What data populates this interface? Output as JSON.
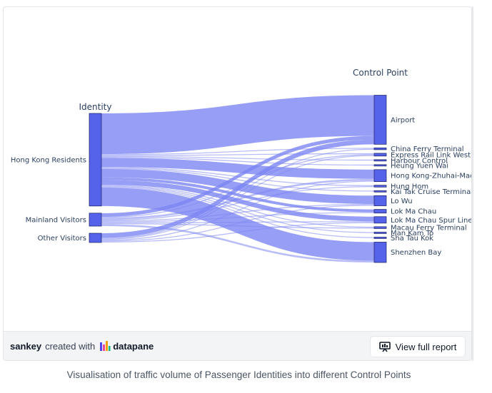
{
  "chart_data": {
    "type": "sankey",
    "column_titles": [
      "Identity",
      "Control Point"
    ],
    "sources": [
      "Hong Kong Residents",
      "Mainland Visitors",
      "Other Visitors"
    ],
    "targets": [
      "Airport",
      "China Ferry Terminal",
      "Express Rail Link West Kowloon",
      "Harbour Control",
      "Heung Yuen Wai",
      "Hong Kong-Zhuhai-Macao Bridge",
      "Hung Hom",
      "Kai Tak Cruise Terminal",
      "Lo Wu",
      "Lok Ma Chau",
      "Lok Ma Chau Spur Line",
      "Macau Ferry Terminal",
      "Man Kam To",
      "Sha Tau Kok",
      "Shenzhen Bay"
    ],
    "source_values": [
      100,
      14,
      10
    ],
    "target_values": [
      53,
      2,
      3,
      1,
      1,
      13,
      2,
      1,
      11,
      4,
      7,
      2,
      1,
      1,
      22
    ],
    "flows": [
      {
        "source": "Hong Kong Residents",
        "target": "Airport",
        "value": 44
      },
      {
        "source": "Hong Kong Residents",
        "target": "China Ferry Terminal",
        "value": 1
      },
      {
        "source": "Hong Kong Residents",
        "target": "Express Rail Link West Kowloon",
        "value": 1
      },
      {
        "source": "Hong Kong Residents",
        "target": "Harbour Control",
        "value": 1
      },
      {
        "source": "Hong Kong Residents",
        "target": "Heung Yuen Wai",
        "value": 1
      },
      {
        "source": "Hong Kong Residents",
        "target": "Hong Kong-Zhuhai-Macao Bridge",
        "value": 10
      },
      {
        "source": "Hong Kong Residents",
        "target": "Hung Hom",
        "value": 1
      },
      {
        "source": "Hong Kong Residents",
        "target": "Kai Tak Cruise Terminal",
        "value": 1
      },
      {
        "source": "Hong Kong Residents",
        "target": "Lo Wu",
        "value": 9
      },
      {
        "source": "Hong Kong Residents",
        "target": "Lok Ma Chau",
        "value": 3
      },
      {
        "source": "Hong Kong Residents",
        "target": "Lok Ma Chau Spur Line",
        "value": 5
      },
      {
        "source": "Hong Kong Residents",
        "target": "Macau Ferry Terminal",
        "value": 1
      },
      {
        "source": "Hong Kong Residents",
        "target": "Man Kam To",
        "value": 1
      },
      {
        "source": "Hong Kong Residents",
        "target": "Sha Tau Kok",
        "value": 1
      },
      {
        "source": "Hong Kong Residents",
        "target": "Shenzhen Bay",
        "value": 20
      },
      {
        "source": "Mainland Visitors",
        "target": "Airport",
        "value": 4
      },
      {
        "source": "Mainland Visitors",
        "target": "Express Rail Link West Kowloon",
        "value": 1
      },
      {
        "source": "Mainland Visitors",
        "target": "Hong Kong-Zhuhai-Macao Bridge",
        "value": 2
      },
      {
        "source": "Mainland Visitors",
        "target": "Hung Hom",
        "value": 1
      },
      {
        "source": "Mainland Visitors",
        "target": "Lo Wu",
        "value": 1
      },
      {
        "source": "Mainland Visitors",
        "target": "Lok Ma Chau",
        "value": 1
      },
      {
        "source": "Mainland Visitors",
        "target": "Lok Ma Chau Spur Line",
        "value": 1
      },
      {
        "source": "Mainland Visitors",
        "target": "Macau Ferry Terminal",
        "value": 1
      },
      {
        "source": "Mainland Visitors",
        "target": "Shenzhen Bay",
        "value": 2
      },
      {
        "source": "Other Visitors",
        "target": "Airport",
        "value": 5
      },
      {
        "source": "Other Visitors",
        "target": "China Ferry Terminal",
        "value": 1
      },
      {
        "source": "Other Visitors",
        "target": "Express Rail Link West Kowloon",
        "value": 1
      },
      {
        "source": "Other Visitors",
        "target": "Hong Kong-Zhuhai-Macao Bridge",
        "value": 1
      },
      {
        "source": "Other Visitors",
        "target": "Lo Wu",
        "value": 1
      },
      {
        "source": "Other Visitors",
        "target": "Lok Ma Chau Spur Line",
        "value": 1
      }
    ],
    "node_color": "#5562ea",
    "link_color": "#7d86f2"
  },
  "footer": {
    "figure_name": "sankey",
    "created_with": "created with",
    "brand": "datapane",
    "button_label": "View full report"
  },
  "caption": "Visualisation of traffic volume of Passenger Identities into different Control Points"
}
